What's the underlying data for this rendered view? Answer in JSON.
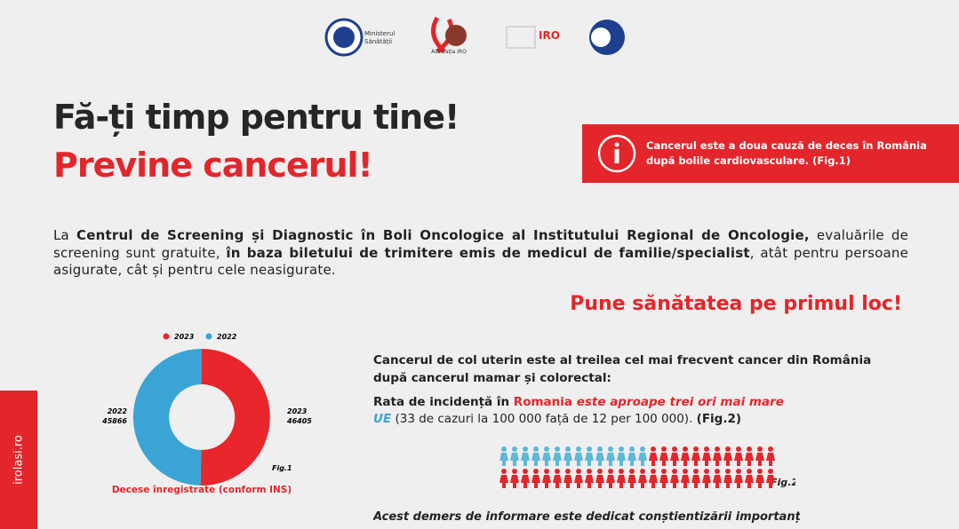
{
  "header": {
    "logos": [
      {
        "lines": [
          "Ministerul",
          "Sănătății"
        ]
      },
      {
        "lines": [
          "Asociația IRO"
        ]
      },
      {
        "lines": [
          "IRO"
        ]
      }
    ]
  },
  "title": {
    "line1": "Fă-ți timp pentru tine!",
    "line2": "Previne cancerul!"
  },
  "info_box": {
    "text": "Cancerul este a doua cauză de deces în România după bolile cardiovasculare. (Fig.1)"
  },
  "paragraph": [
    "La ",
    "Centrul de Screening și Diagnostic în Boli Oncologice al Institutului Regional de Oncologie,",
    " evaluările de screening sunt gratuite, ",
    "în baza biletului de trimitere emis de medicul de familie/specialist",
    ", atât pentru persoane asigurate, cât și pentru cele neasigurate."
  ],
  "slogan": "Pune sănătatea pe primul loc!",
  "chart_data": {
    "type": "pie",
    "title": "Decese înregistrate (conform INS)",
    "figure": "Fig.1",
    "categories": [
      "2023",
      "2022"
    ],
    "values": [
      46405,
      45866
    ],
    "colors": [
      "#e8262b",
      "#3aa5d5"
    ]
  },
  "facts": {
    "heading": "Cancerul de col uterin este al treilea cel mai frecvent cancer din România după cancerul mamar și colorectal:",
    "incidence": [
      "Rata de incidență în ",
      "Romania",
      " este aproape trei ori mai mare",
      "UE",
      " (33 de cazuri la 100 000 față de 12 per 100 000). ",
      "(Fig.2)"
    ],
    "figure": "Fig.2"
  },
  "footer_text": "Acest demers de informare este dedicat conștientizării importanței",
  "side_label": "irolasi.ro"
}
